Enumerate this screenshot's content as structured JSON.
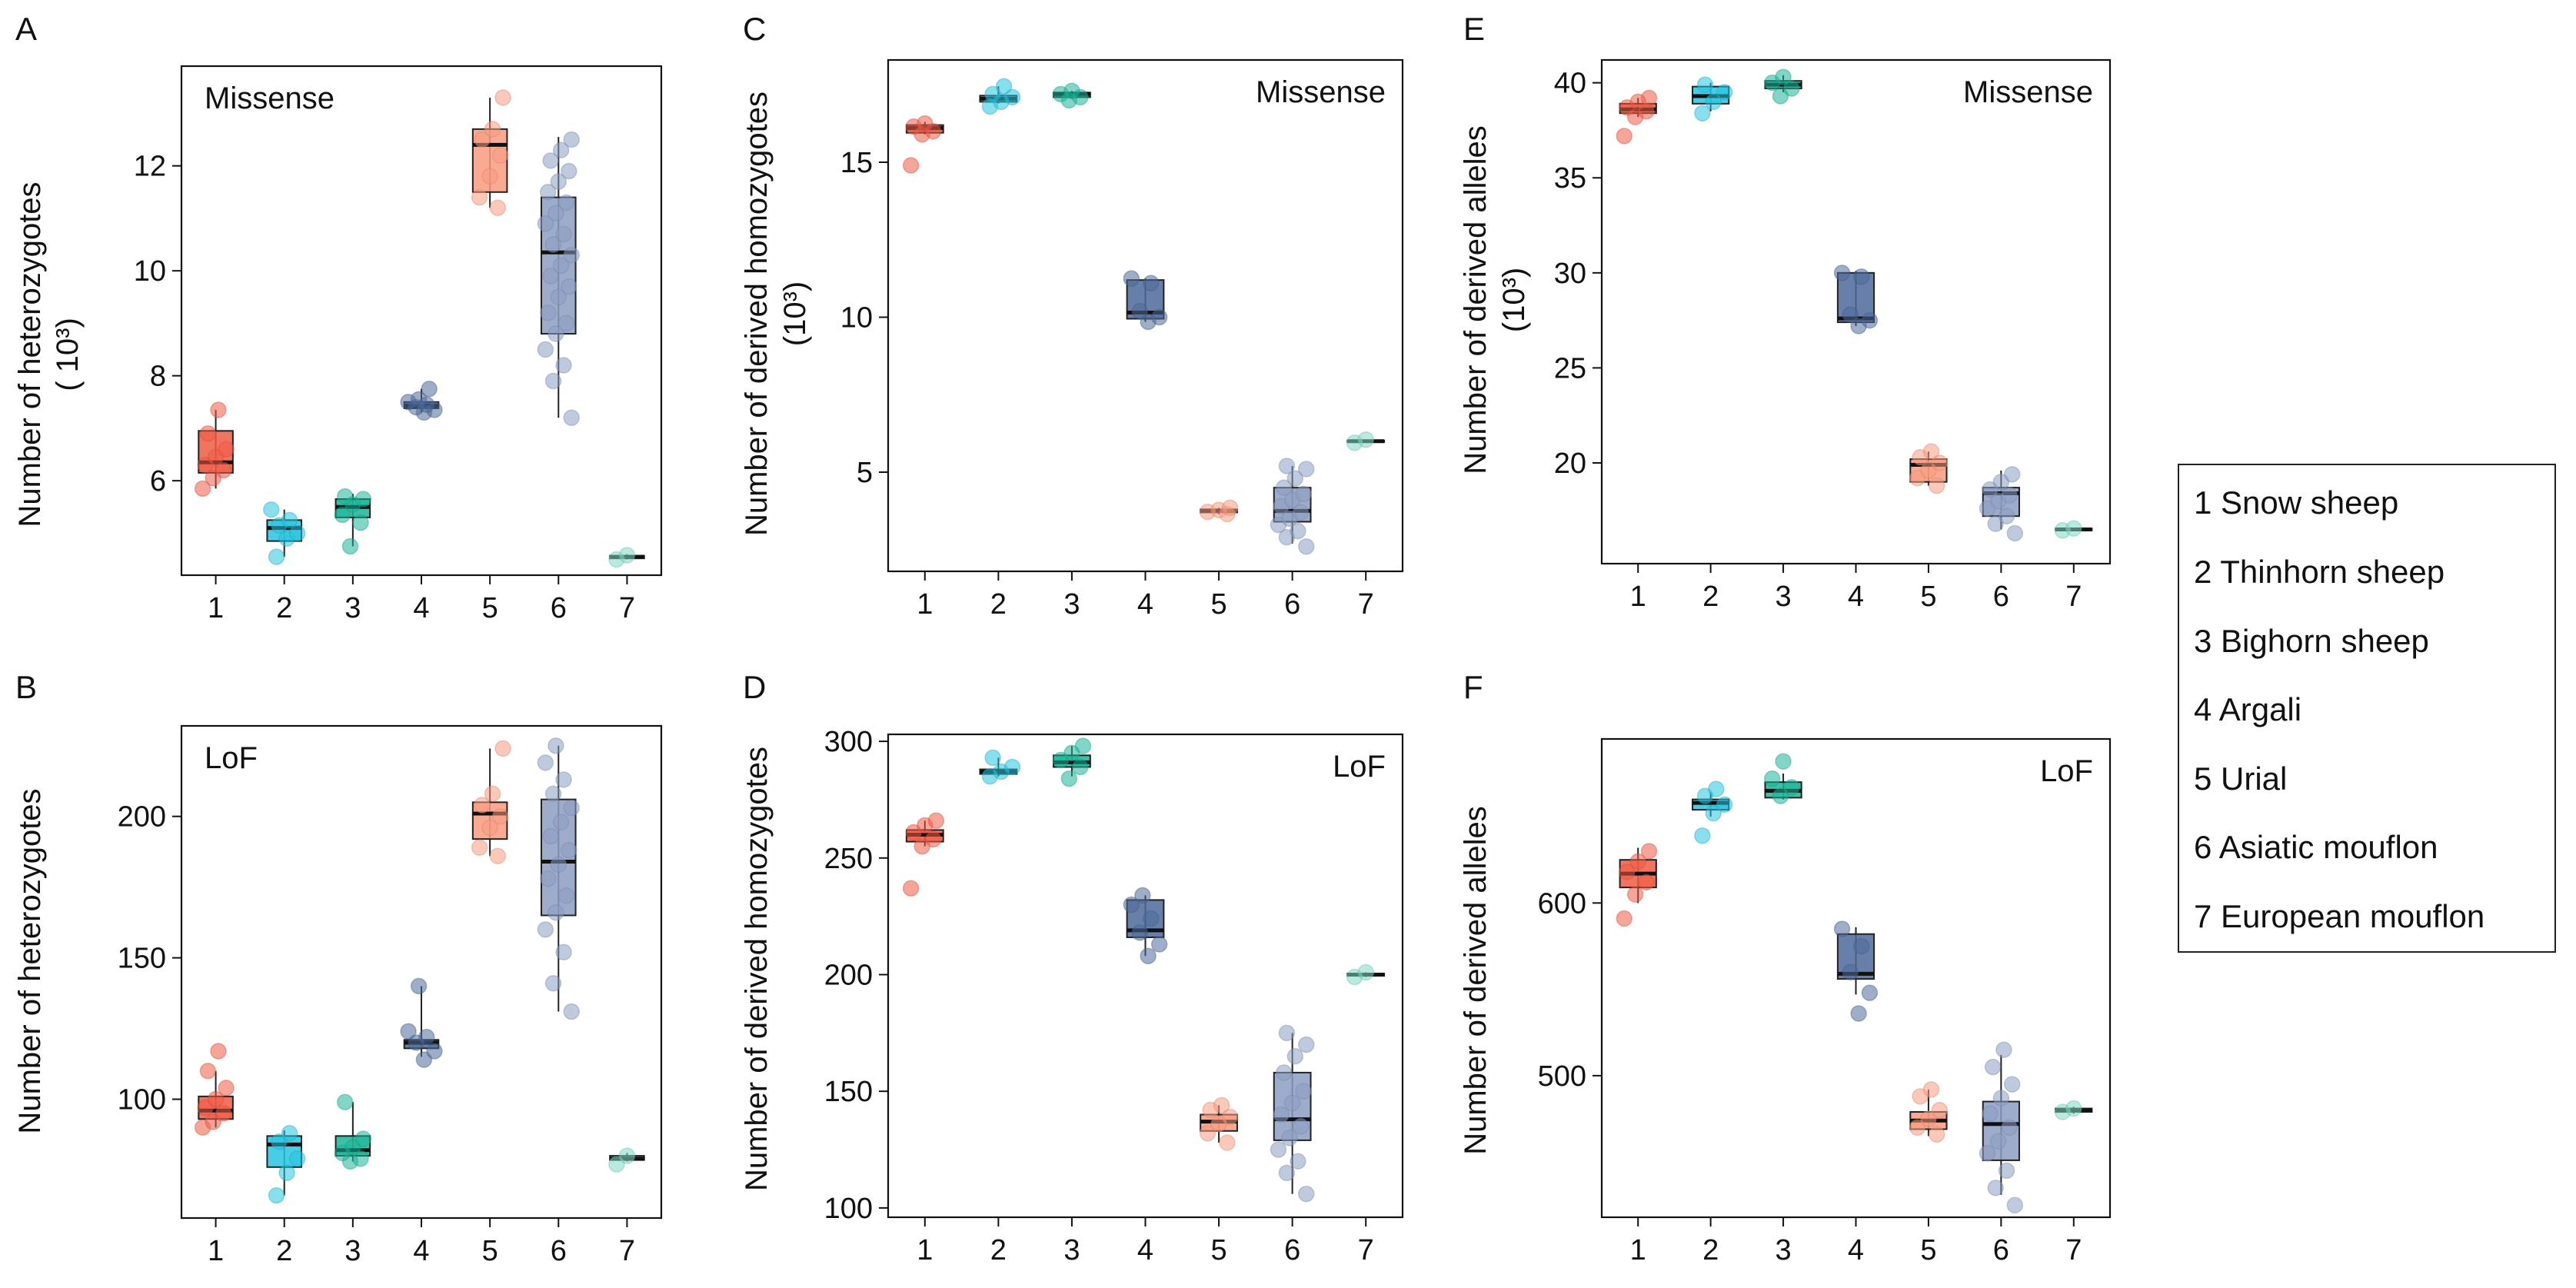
{
  "colors": {
    "1": "#f15a45",
    "2": "#27c4e0",
    "3": "#1ab599",
    "4": "#4e6a9a",
    "5": "#f99b80",
    "6": "#8d9ec2",
    "7": "#7fd8c4"
  },
  "legend": {
    "items": [
      "1 Snow sheep",
      "2 Thinhorn sheep",
      "3 Bighorn sheep",
      "4 Argali",
      "5 Urial",
      "6 Asiatic mouflon",
      "7 European mouflon"
    ]
  },
  "chart_data": [
    {
      "panel": "A",
      "type": "box",
      "annotation": "Missense",
      "annotation_pos": "top-left",
      "ylabel": "Number of heterozygotes",
      "ylabel2": "( 10³)",
      "ylim": [
        4.2,
        13.9
      ],
      "yticks": [
        6,
        8,
        10,
        12
      ],
      "categories": [
        "1",
        "2",
        "3",
        "4",
        "5",
        "6",
        "7"
      ],
      "boxes": [
        {
          "min": 5.85,
          "q1": 6.15,
          "median": 6.35,
          "q3": 6.95,
          "max": 7.35,
          "points": [
            5.85,
            6.05,
            6.2,
            6.3,
            6.45,
            6.6,
            6.9,
            7.35
          ]
        },
        {
          "min": 4.55,
          "q1": 4.85,
          "median": 5.1,
          "q3": 5.25,
          "max": 5.45,
          "points": [
            4.55,
            4.9,
            5.0,
            5.15,
            5.25,
            5.45
          ]
        },
        {
          "min": 4.75,
          "q1": 5.3,
          "median": 5.5,
          "q3": 5.65,
          "max": 5.75,
          "points": [
            4.75,
            5.2,
            5.35,
            5.55,
            5.65,
            5.7
          ]
        },
        {
          "min": 7.3,
          "q1": 7.38,
          "median": 7.43,
          "q3": 7.5,
          "max": 7.75,
          "points": [
            7.3,
            7.35,
            7.4,
            7.45,
            7.5,
            7.55,
            7.75
          ]
        },
        {
          "min": 11.2,
          "q1": 11.5,
          "median": 12.4,
          "q3": 12.7,
          "max": 13.3,
          "points": [
            11.2,
            11.4,
            11.8,
            12.2,
            12.5,
            12.7,
            13.3
          ]
        },
        {
          "min": 7.2,
          "q1": 8.8,
          "median": 10.35,
          "q3": 11.4,
          "max": 12.55,
          "points": [
            7.2,
            7.9,
            8.2,
            8.5,
            8.8,
            9.0,
            9.2,
            9.5,
            9.7,
            9.9,
            10.1,
            10.3,
            10.5,
            10.7,
            10.9,
            11.1,
            11.3,
            11.5,
            11.7,
            11.9,
            12.1,
            12.3,
            12.5
          ]
        },
        {
          "min": 4.5,
          "q1": 4.52,
          "median": 4.55,
          "q3": 4.57,
          "max": 4.6,
          "points": [
            4.5,
            4.58
          ]
        }
      ]
    },
    {
      "panel": "B",
      "type": "box",
      "annotation": "LoF",
      "annotation_pos": "top-left",
      "ylabel": "Number of heterozygotes",
      "ylabel2": "",
      "ylim": [
        58,
        232
      ],
      "yticks": [
        100,
        150,
        200
      ],
      "categories": [
        "1",
        "2",
        "3",
        "4",
        "5",
        "6",
        "7"
      ],
      "boxes": [
        {
          "min": 90,
          "q1": 93,
          "median": 96,
          "q3": 101,
          "max": 110,
          "points": [
            90,
            92,
            95,
            97,
            100,
            104,
            110,
            117
          ]
        },
        {
          "min": 66,
          "q1": 76,
          "median": 84,
          "q3": 87,
          "max": 89,
          "points": [
            66,
            74,
            79,
            85,
            88
          ]
        },
        {
          "min": 78,
          "q1": 80,
          "median": 82,
          "q3": 87,
          "max": 99,
          "points": [
            78,
            79,
            81,
            83,
            86,
            99
          ]
        },
        {
          "min": 115,
          "q1": 118,
          "median": 120,
          "q3": 121,
          "max": 140,
          "points": [
            114,
            117,
            120,
            122,
            124,
            140
          ]
        },
        {
          "min": 186,
          "q1": 192,
          "median": 201,
          "q3": 205,
          "max": 224,
          "points": [
            186,
            189,
            196,
            200,
            204,
            208,
            224
          ]
        },
        {
          "min": 131,
          "q1": 165,
          "median": 184,
          "q3": 206,
          "max": 225,
          "points": [
            131,
            141,
            152,
            160,
            166,
            172,
            178,
            183,
            188,
            193,
            198,
            203,
            208,
            213,
            219,
            225
          ]
        },
        {
          "min": 78,
          "q1": 78.5,
          "median": 79,
          "q3": 80,
          "max": 81,
          "points": [
            77,
            80
          ]
        }
      ]
    },
    {
      "panel": "C",
      "type": "box",
      "annotation": "Missense",
      "annotation_pos": "top-right",
      "ylabel": "Number of derived homozygotes",
      "ylabel2": "(10³)",
      "ylim": [
        1.8,
        18.3
      ],
      "yticks": [
        5,
        10,
        15
      ],
      "categories": [
        "1",
        "2",
        "3",
        "4",
        "5",
        "6",
        "7"
      ],
      "boxes": [
        {
          "min": 15.9,
          "q1": 15.95,
          "median": 16.1,
          "q3": 16.2,
          "max": 16.3,
          "points": [
            14.9,
            15.9,
            16.0,
            16.15,
            16.25
          ]
        },
        {
          "min": 16.9,
          "q1": 16.95,
          "median": 17.05,
          "q3": 17.15,
          "max": 17.45,
          "points": [
            16.8,
            16.95,
            17.1,
            17.2,
            17.45
          ]
        },
        {
          "min": 17.05,
          "q1": 17.1,
          "median": 17.2,
          "q3": 17.25,
          "max": 17.3,
          "points": [
            17.0,
            17.1,
            17.2,
            17.3
          ]
        },
        {
          "min": 9.85,
          "q1": 9.95,
          "median": 10.15,
          "q3": 11.2,
          "max": 11.25,
          "points": [
            9.85,
            10.0,
            10.2,
            11.1,
            11.25
          ]
        },
        {
          "min": 3.65,
          "q1": 3.7,
          "median": 3.75,
          "q3": 3.8,
          "max": 3.85,
          "points": [
            3.65,
            3.72,
            3.78,
            3.85
          ]
        },
        {
          "min": 2.7,
          "q1": 3.4,
          "median": 3.75,
          "q3": 4.5,
          "max": 5.2,
          "points": [
            2.6,
            2.9,
            3.1,
            3.3,
            3.5,
            3.7,
            3.9,
            4.1,
            4.3,
            4.5,
            4.8,
            5.1,
            5.2
          ]
        },
        {
          "min": 5.95,
          "q1": 5.98,
          "median": 6.0,
          "q3": 6.02,
          "max": 6.05,
          "points": [
            5.95,
            6.05
          ]
        }
      ]
    },
    {
      "panel": "D",
      "type": "box",
      "annotation": "LoF",
      "annotation_pos": "top-right",
      "ylabel": "Number of derived homozygotes",
      "ylabel2": "",
      "ylim": [
        96,
        303
      ],
      "yticks": [
        100,
        150,
        200,
        250,
        300
      ],
      "categories": [
        "1",
        "2",
        "3",
        "4",
        "5",
        "6",
        "7"
      ],
      "boxes": [
        {
          "min": 255,
          "q1": 257,
          "median": 260,
          "q3": 262,
          "max": 266,
          "points": [
            237,
            255,
            258,
            261,
            264,
            266
          ]
        },
        {
          "min": 285,
          "q1": 286,
          "median": 287,
          "q3": 288,
          "max": 293,
          "points": [
            285,
            287,
            289,
            293
          ]
        },
        {
          "min": 285,
          "q1": 289,
          "median": 291,
          "q3": 294,
          "max": 298,
          "points": [
            284,
            289,
            292,
            295,
            298
          ]
        },
        {
          "min": 208,
          "q1": 216,
          "median": 219,
          "q3": 232,
          "max": 234,
          "points": [
            208,
            213,
            218,
            224,
            230,
            234
          ]
        },
        {
          "min": 128,
          "q1": 133,
          "median": 137,
          "q3": 140,
          "max": 144,
          "points": [
            128,
            132,
            136,
            139,
            142,
            144
          ]
        },
        {
          "min": 106,
          "q1": 129,
          "median": 138,
          "q3": 158,
          "max": 175,
          "points": [
            106,
            115,
            120,
            125,
            130,
            135,
            140,
            145,
            150,
            158,
            165,
            170,
            175
          ]
        },
        {
          "min": 199,
          "q1": 199.5,
          "median": 200,
          "q3": 200.5,
          "max": 201,
          "points": [
            199,
            201
          ]
        }
      ]
    },
    {
      "panel": "E",
      "type": "box",
      "annotation": "Missense",
      "annotation_pos": "top-right",
      "ylabel": "Number of derived alleles",
      "ylabel2": "(10³)",
      "ylim": [
        14.7,
        41.2
      ],
      "yticks": [
        20,
        25,
        30,
        35,
        40
      ],
      "categories": [
        "1",
        "2",
        "3",
        "4",
        "5",
        "6",
        "7"
      ],
      "boxes": [
        {
          "min": 38.2,
          "q1": 38.4,
          "median": 38.6,
          "q3": 38.9,
          "max": 39.2,
          "points": [
            37.2,
            38.2,
            38.5,
            38.7,
            39.0,
            39.2
          ]
        },
        {
          "min": 38.5,
          "q1": 38.9,
          "median": 39.3,
          "q3": 39.8,
          "max": 40.0,
          "points": [
            38.4,
            39.0,
            39.5,
            39.9
          ]
        },
        {
          "min": 39.5,
          "q1": 39.7,
          "median": 39.9,
          "q3": 40.1,
          "max": 40.4,
          "points": [
            39.3,
            39.7,
            40.0,
            40.3
          ]
        },
        {
          "min": 27.2,
          "q1": 27.4,
          "median": 27.6,
          "q3": 30.0,
          "max": 30.1,
          "points": [
            27.2,
            27.5,
            27.8,
            29.8,
            30.0
          ]
        },
        {
          "min": 18.8,
          "q1": 19.0,
          "median": 19.9,
          "q3": 20.2,
          "max": 20.6,
          "points": [
            18.8,
            19.2,
            19.6,
            20.0,
            20.3,
            20.6
          ]
        },
        {
          "min": 16.5,
          "q1": 17.2,
          "median": 18.4,
          "q3": 18.7,
          "max": 19.6,
          "points": [
            16.3,
            16.8,
            17.2,
            17.6,
            18.0,
            18.3,
            18.6,
            19.0,
            19.4
          ]
        },
        {
          "min": 16.4,
          "q1": 16.45,
          "median": 16.5,
          "q3": 16.55,
          "max": 16.6,
          "points": [
            16.45,
            16.55
          ]
        }
      ]
    },
    {
      "panel": "F",
      "type": "box",
      "annotation": "LoF",
      "annotation_pos": "top-right",
      "ylabel": "Number of derived alleles",
      "ylabel2": "",
      "ylim": [
        418,
        695
      ],
      "yticks": [
        500,
        600
      ],
      "categories": [
        "1",
        "2",
        "3",
        "4",
        "5",
        "6",
        "7"
      ],
      "boxes": [
        {
          "min": 600,
          "q1": 609,
          "median": 617,
          "q3": 625,
          "max": 632,
          "points": [
            591,
            605,
            612,
            618,
            624,
            630
          ]
        },
        {
          "min": 650,
          "q1": 654,
          "median": 658,
          "q3": 660,
          "max": 664,
          "points": [
            639,
            652,
            657,
            662,
            666
          ]
        },
        {
          "min": 660,
          "q1": 661,
          "median": 665,
          "q3": 670,
          "max": 675,
          "points": [
            662,
            667,
            672,
            682
          ]
        },
        {
          "min": 547,
          "q1": 556,
          "median": 559,
          "q3": 582,
          "max": 586,
          "points": [
            536,
            548,
            560,
            575,
            585
          ]
        },
        {
          "min": 465,
          "q1": 469,
          "median": 474,
          "q3": 479,
          "max": 492,
          "points": [
            466,
            470,
            475,
            480,
            488,
            492
          ]
        },
        {
          "min": 431,
          "q1": 451,
          "median": 472,
          "q3": 485,
          "max": 512,
          "points": [
            425,
            435,
            445,
            455,
            462,
            470,
            478,
            487,
            495,
            505,
            515
          ]
        },
        {
          "min": 478,
          "q1": 479,
          "median": 480,
          "q3": 481,
          "max": 482,
          "points": [
            479,
            481
          ]
        }
      ]
    }
  ]
}
